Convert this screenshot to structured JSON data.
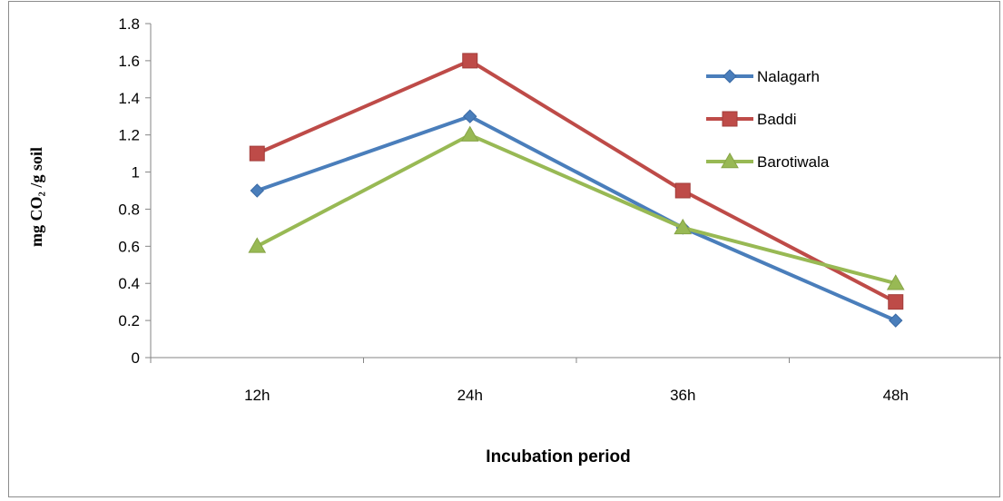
{
  "chart_data": {
    "type": "line",
    "categories": [
      "12h",
      "24h",
      "36h",
      "48h"
    ],
    "series": [
      {
        "name": "Nalagarh",
        "values": [
          0.9,
          1.3,
          0.7,
          0.2
        ],
        "color": "#4a7ebb",
        "marker": "diamond"
      },
      {
        "name": "Baddi",
        "values": [
          1.1,
          1.6,
          0.9,
          0.3
        ],
        "color": "#be4b48",
        "marker": "square"
      },
      {
        "name": "Barotiwala",
        "values": [
          0.6,
          1.2,
          0.7,
          0.4
        ],
        "color": "#98b954",
        "marker": "triangle"
      }
    ],
    "xlabel": "Incubation period",
    "ylabel": "mg CO₂ /g soil",
    "ylim": [
      0,
      1.8
    ],
    "yticks": [
      "0",
      "0.2",
      "0.4",
      "0.6",
      "0.8",
      "1",
      "1.2",
      "1.4",
      "1.6",
      "1.8"
    ],
    "grid": false,
    "legend_position": "top-right"
  }
}
